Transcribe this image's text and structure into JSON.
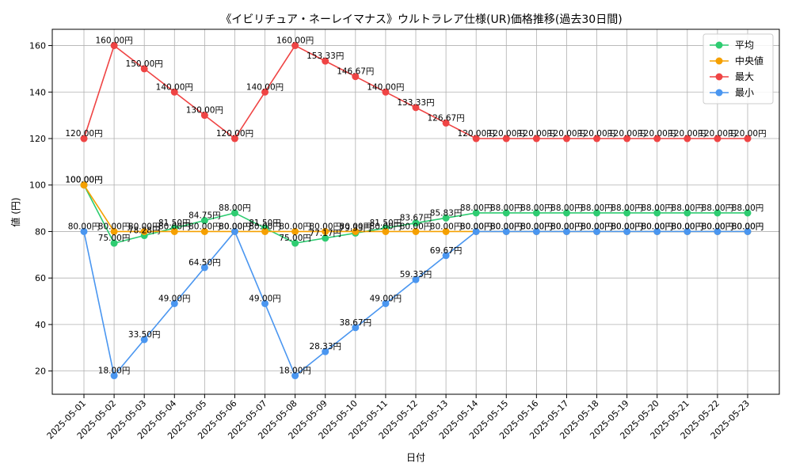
{
  "chart_data": {
    "type": "line",
    "title": "《イビリチュア・ネーレイマナス》ウルトラレア仕様(UR)価格推移(過去30日間)",
    "xlabel": "日付",
    "ylabel": "値 (円)",
    "ylim": [
      10,
      167
    ],
    "yticks": [
      20,
      40,
      60,
      80,
      100,
      120,
      140,
      160
    ],
    "grid": true,
    "legend_position": "top-right",
    "value_suffix": "円",
    "categories": [
      "2025-05-01",
      "2025-05-02",
      "2025-05-03",
      "2025-05-04",
      "2025-05-05",
      "2025-05-06",
      "2025-05-07",
      "2025-05-08",
      "2025-05-09",
      "2025-05-10",
      "2025-05-11",
      "2025-05-12",
      "2025-05-13",
      "2025-05-14",
      "2025-05-15",
      "2025-05-16",
      "2025-05-17",
      "2025-05-18",
      "2025-05-19",
      "2025-05-20",
      "2025-05-21",
      "2025-05-22",
      "2025-05-23"
    ],
    "series": [
      {
        "name": "平均",
        "color": "#2ecc71",
        "values": [
          100.0,
          75.0,
          78.28,
          81.5,
          84.75,
          88.0,
          81.5,
          75.0,
          77.17,
          79.33,
          81.5,
          83.67,
          85.83,
          88.0,
          88.0,
          88.0,
          88.0,
          88.0,
          88.0,
          88.0,
          88.0,
          88.0,
          88.0
        ]
      },
      {
        "name": "中央値",
        "color": "#f5a000",
        "values": [
          100.0,
          80.0,
          80.0,
          80.0,
          80.0,
          80.0,
          80.0,
          80.0,
          80.0,
          80.0,
          80.0,
          80.0,
          80.0,
          80.0,
          80.0,
          80.0,
          80.0,
          80.0,
          80.0,
          80.0,
          80.0,
          80.0,
          80.0
        ]
      },
      {
        "name": "最大",
        "color": "#ef4444",
        "values": [
          120.0,
          160.0,
          150.0,
          140.0,
          130.0,
          120.0,
          140.0,
          160.0,
          153.33,
          146.67,
          140.0,
          133.33,
          126.67,
          120.0,
          120.0,
          120.0,
          120.0,
          120.0,
          120.0,
          120.0,
          120.0,
          120.0,
          120.0
        ]
      },
      {
        "name": "最小",
        "color": "#4a96f0",
        "values": [
          80.0,
          18.0,
          33.5,
          49.0,
          64.5,
          80.0,
          49.0,
          18.0,
          28.33,
          38.67,
          49.0,
          59.33,
          69.67,
          80.0,
          80.0,
          80.0,
          80.0,
          80.0,
          80.0,
          80.0,
          80.0,
          80.0,
          80.0
        ]
      }
    ]
  }
}
